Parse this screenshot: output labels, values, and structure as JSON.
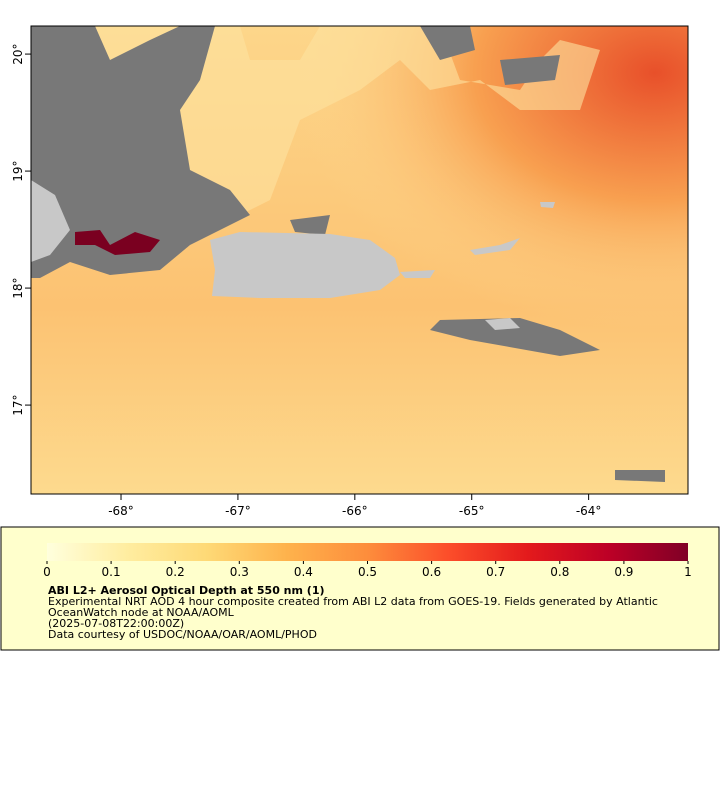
{
  "map": {
    "xlim": [
      -68.77,
      -63.15
    ],
    "ylim": [
      16.24,
      20.24
    ],
    "xticks": [
      {
        "value": -68,
        "label": "-68°"
      },
      {
        "value": -67,
        "label": "-67°"
      },
      {
        "value": -66,
        "label": "-66°"
      },
      {
        "value": -65,
        "label": "-65°"
      },
      {
        "value": -64,
        "label": "-64°"
      }
    ],
    "yticks": [
      {
        "value": 17,
        "label": "17°"
      },
      {
        "value": 18,
        "label": "18°"
      },
      {
        "value": 19,
        "label": "19°"
      },
      {
        "value": 20,
        "label": "20°"
      }
    ]
  },
  "colorbar": {
    "range": [
      0,
      1
    ],
    "ticks": [
      0,
      0.1,
      0.2,
      0.3,
      0.4,
      0.5,
      0.6,
      0.7,
      0.8,
      0.9,
      1
    ],
    "colors": [
      "#ffffdd",
      "#ffeda0",
      "#fed976",
      "#feb24c",
      "#fd8d3c",
      "#fc4e2a",
      "#e31a1c",
      "#bd0026",
      "#800026"
    ]
  },
  "legend": {
    "title": "ABI L2+ Aerosol Optical Depth at 550 nm (1)",
    "lines": [
      "Experimental NRT AOD 4 hour composite created from ABI L2 data from GOES-19. Fields generated by Atlantic",
      "OceanWatch node at NOAA/AOML",
      "(2025-07-08T22:00:00Z)",
      "Data courtesy of USDOC/NOAA/OAR/AOML/PHOD"
    ]
  }
}
